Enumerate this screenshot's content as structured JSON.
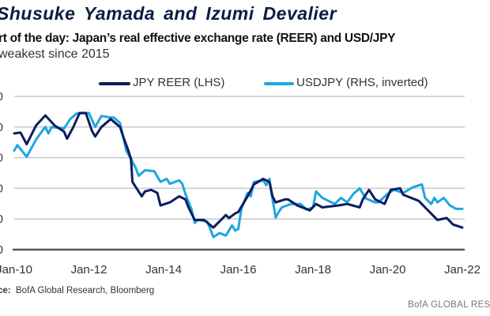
{
  "header": {
    "author": "Shusuke Yamada and Izumi Devalier",
    "title": "rt of the day: Japan’s real effective exchange rate (REER) and USD/JPY",
    "subtitle": "weakest since 2015"
  },
  "chart_data": {
    "type": "line",
    "title": "Japan’s real effective exchange rate (REER) and USD/JPY",
    "xlabel": "",
    "ylabel": "",
    "x_unit": "months since Jan-10",
    "xlim": [
      0,
      144
    ],
    "ylim": [
      0,
      5
    ],
    "y_unit": "gridline steps (LHS labels cropped)",
    "grid": true,
    "legend_position": "top",
    "x_ticks": [
      {
        "month": 0,
        "label": "Jan-10"
      },
      {
        "month": 24,
        "label": "Jan-12"
      },
      {
        "month": 48,
        "label": "Jan-14"
      },
      {
        "month": 72,
        "label": "Jan-16"
      },
      {
        "month": 96,
        "label": "Jan-18"
      },
      {
        "month": 120,
        "label": "Jan-20"
      },
      {
        "month": 144,
        "label": "Jan-22"
      }
    ],
    "y_ticks": [
      {
        "value": 0,
        "label": "0"
      },
      {
        "value": 1,
        "label": "0"
      },
      {
        "value": 2,
        "label": "0"
      },
      {
        "value": 3,
        "label": "0"
      },
      {
        "value": 4,
        "label": "0"
      },
      {
        "value": 5,
        "label": "0"
      }
    ],
    "series": [
      {
        "name": "JPY REER (LHS)",
        "color": "#0b1d5e",
        "points": [
          [
            0,
            3.79
          ],
          [
            2,
            3.82
          ],
          [
            4,
            3.44
          ],
          [
            7,
            4.05
          ],
          [
            10,
            4.38
          ],
          [
            13,
            4.05
          ],
          [
            16,
            3.85
          ],
          [
            17,
            3.62
          ],
          [
            19,
            4.0
          ],
          [
            21,
            4.46
          ],
          [
            23,
            4.46
          ],
          [
            25,
            3.87
          ],
          [
            26,
            3.69
          ],
          [
            28,
            4.0
          ],
          [
            31,
            4.26
          ],
          [
            34,
            4.0
          ],
          [
            35,
            3.69
          ],
          [
            36.5,
            3.28
          ],
          [
            37.5,
            2.97
          ],
          [
            38,
            2.21
          ],
          [
            41,
            1.74
          ],
          [
            42,
            1.9
          ],
          [
            44,
            1.95
          ],
          [
            46,
            1.85
          ],
          [
            47,
            1.44
          ],
          [
            50,
            1.54
          ],
          [
            53,
            1.74
          ],
          [
            55,
            1.64
          ],
          [
            56,
            1.38
          ],
          [
            58,
            0.97
          ],
          [
            61,
            0.97
          ],
          [
            64,
            0.72
          ],
          [
            68,
            1.13
          ],
          [
            69,
            1.03
          ],
          [
            71,
            1.18
          ],
          [
            72,
            1.23
          ],
          [
            75,
            1.74
          ],
          [
            77,
            2.13
          ],
          [
            80,
            2.31
          ],
          [
            82,
            2.21
          ],
          [
            83,
            1.74
          ],
          [
            84,
            1.54
          ],
          [
            87,
            1.64
          ],
          [
            88,
            1.64
          ],
          [
            91,
            1.44
          ],
          [
            95,
            1.28
          ],
          [
            97,
            1.49
          ],
          [
            99,
            1.38
          ],
          [
            104,
            1.44
          ],
          [
            107,
            1.49
          ],
          [
            111,
            1.38
          ],
          [
            112,
            1.64
          ],
          [
            114,
            1.95
          ],
          [
            116,
            1.64
          ],
          [
            119,
            1.49
          ],
          [
            121,
            1.95
          ],
          [
            124,
            2.0
          ],
          [
            125,
            1.79
          ],
          [
            130,
            1.59
          ],
          [
            132,
            1.38
          ],
          [
            136,
            0.97
          ],
          [
            139,
            1.03
          ],
          [
            141,
            0.82
          ],
          [
            144,
            0.72
          ]
        ]
      },
      {
        "name": "USDJPY (RHS, inverted)",
        "color": "#1ea6e0",
        "points": [
          [
            0,
            3.23
          ],
          [
            1,
            3.41
          ],
          [
            4,
            3.03
          ],
          [
            7,
            3.59
          ],
          [
            9,
            3.87
          ],
          [
            10,
            4.0
          ],
          [
            11,
            3.79
          ],
          [
            12,
            4.0
          ],
          [
            16,
            3.95
          ],
          [
            18,
            4.26
          ],
          [
            20,
            4.44
          ],
          [
            24,
            4.46
          ],
          [
            26,
            4.0
          ],
          [
            28,
            4.36
          ],
          [
            31,
            4.31
          ],
          [
            32,
            4.31
          ],
          [
            34,
            4.13
          ],
          [
            36,
            3.23
          ],
          [
            39,
            2.67
          ],
          [
            40,
            2.41
          ],
          [
            42,
            2.59
          ],
          [
            45,
            2.56
          ],
          [
            47,
            2.21
          ],
          [
            49,
            2.31
          ],
          [
            50,
            2.15
          ],
          [
            53,
            2.26
          ],
          [
            54,
            2.15
          ],
          [
            55,
            1.82
          ],
          [
            57,
            1.31
          ],
          [
            58,
            0.87
          ],
          [
            59,
            0.97
          ],
          [
            62,
            0.92
          ],
          [
            63,
            0.67
          ],
          [
            64,
            0.41
          ],
          [
            66,
            0.54
          ],
          [
            68,
            0.46
          ],
          [
            70,
            0.79
          ],
          [
            71,
            0.62
          ],
          [
            72,
            0.67
          ],
          [
            73,
            1.33
          ],
          [
            75,
            1.85
          ],
          [
            76,
            1.74
          ],
          [
            77,
            2.21
          ],
          [
            80,
            2.26
          ],
          [
            81,
            2.1
          ],
          [
            82,
            2.31
          ],
          [
            82.5,
            1.95
          ],
          [
            84,
            1.05
          ],
          [
            85,
            1.23
          ],
          [
            86,
            1.38
          ],
          [
            89,
            1.49
          ],
          [
            92,
            1.49
          ],
          [
            94,
            1.31
          ],
          [
            96,
            1.38
          ],
          [
            97,
            1.9
          ],
          [
            99,
            1.69
          ],
          [
            102,
            1.54
          ],
          [
            103,
            1.49
          ],
          [
            105,
            1.69
          ],
          [
            107,
            1.54
          ],
          [
            109,
            1.82
          ],
          [
            111,
            2.0
          ],
          [
            113,
            1.67
          ],
          [
            116,
            1.54
          ],
          [
            117,
            1.54
          ],
          [
            120,
            1.82
          ],
          [
            122,
            1.95
          ],
          [
            125,
            1.85
          ],
          [
            128,
            2.03
          ],
          [
            131,
            2.13
          ],
          [
            132,
            1.69
          ],
          [
            134,
            1.49
          ],
          [
            135,
            1.69
          ],
          [
            136,
            1.54
          ],
          [
            138,
            1.69
          ],
          [
            140,
            1.44
          ],
          [
            142,
            1.33
          ],
          [
            144,
            1.33
          ]
        ]
      }
    ]
  },
  "legend": {
    "items": [
      {
        "label": "JPY REER (LHS)",
        "color": "#0b1d5e"
      },
      {
        "label": "USDJPY (RHS, inverted)",
        "color": "#1ea6e0"
      }
    ]
  },
  "source": {
    "prefix": "ce:",
    "text": "BofA Global Research, Bloomberg"
  },
  "footer": "BofA GLOBAL RES"
}
